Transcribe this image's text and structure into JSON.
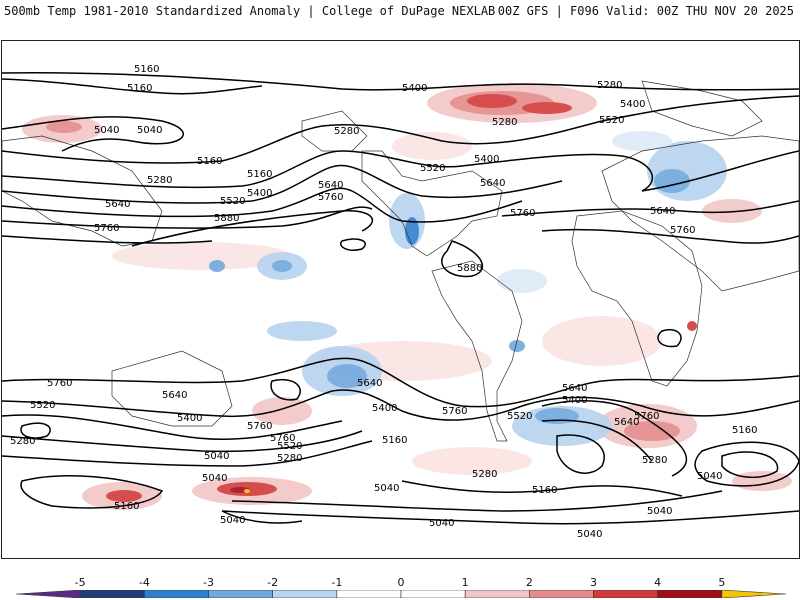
{
  "header": {
    "title": "500mb Temp 1981-2010 Standardized Anomaly | College of DuPage NEXLAB",
    "run_info": "00Z GFS | F096 Valid: 00Z THU NOV 20 2025"
  },
  "colorbar": {
    "ticks": [
      "-5",
      "-4",
      "-3",
      "-2",
      "-1",
      "0",
      "1",
      "2",
      "3",
      "4",
      "5"
    ],
    "colors": [
      "#5b2a86",
      "#1f3f7a",
      "#2f7fd0",
      "#6fa8dc",
      "#b7d3ef",
      "#ffffff",
      "#ffffff",
      "#f2c6c6",
      "#e48a8a",
      "#d23a3a",
      "#9e0d1a",
      "#f5c400"
    ]
  },
  "contour_labels": [
    "5160",
    "5160",
    "5040",
    "5160",
    "5280",
    "5160",
    "5400",
    "5280",
    "5520",
    "5640",
    "5640",
    "5760",
    "5880",
    "5760",
    "5520",
    "5400",
    "5640",
    "5760",
    "5280",
    "5400",
    "5520",
    "5280",
    "5400",
    "5640",
    "5760",
    "5880",
    "5640",
    "5760",
    "5760",
    "5520",
    "5280",
    "5640",
    "5400",
    "5760",
    "5520",
    "5280",
    "5040",
    "5040",
    "5640",
    "5400",
    "5760",
    "5520",
    "5160",
    "5280",
    "5040",
    "5160",
    "5040",
    "5160",
    "5640",
    "5400",
    "5760",
    "5280",
    "5160",
    "5040",
    "5040",
    "5040",
    "5040",
    "5040"
  ]
}
